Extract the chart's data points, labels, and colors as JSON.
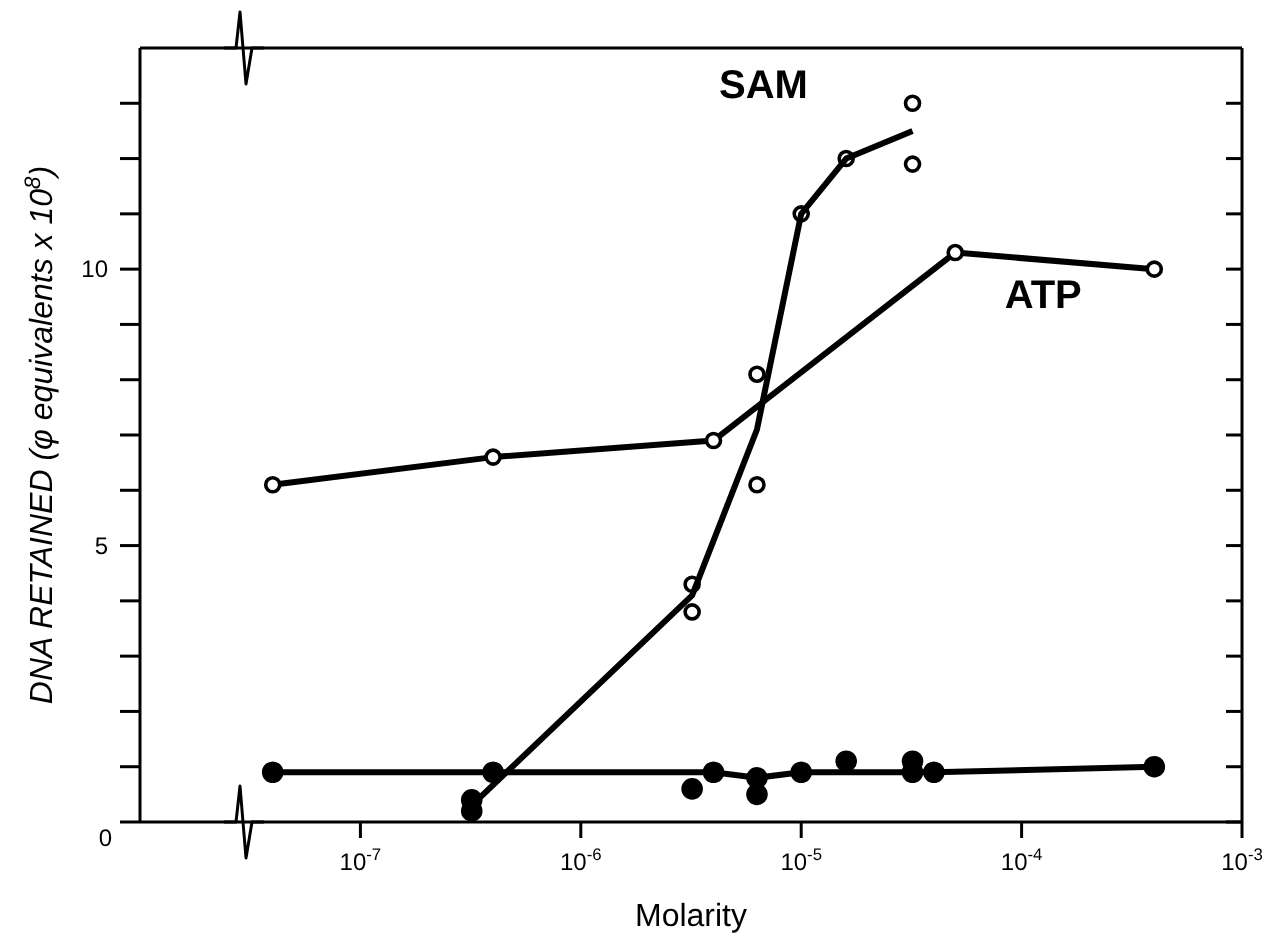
{
  "chart_data": {
    "type": "scatter",
    "xlabel": "Molarity",
    "ylabel": "DNA RETAINED (φ equivalents x 10$^{8}$)",
    "log": "x",
    "xlim": [
      1e-08,
      0.001
    ],
    "ylim": [
      0,
      14
    ],
    "xticks": [
      {
        "value": 1e-07,
        "label": "10$^{-7}$"
      },
      {
        "value": 1e-06,
        "label": "10$^{-6}$"
      },
      {
        "value": 1e-05,
        "label": "10$^{-5}$"
      },
      {
        "value": 0.0001,
        "label": "10$^{-4}$"
      },
      {
        "value": 0.001,
        "label": "10$^{-3}$"
      }
    ],
    "yticks": [
      0,
      {
        "value": 1,
        "label": null
      },
      {
        "value": 2,
        "label": null
      },
      {
        "value": 3,
        "label": null
      },
      {
        "value": 4,
        "label": null
      },
      5,
      {
        "value": 6,
        "label": null
      },
      {
        "value": 7,
        "label": null
      },
      {
        "value": 8,
        "label": null
      },
      {
        "value": 9,
        "label": null
      },
      10,
      {
        "value": 11,
        "label": null
      },
      {
        "value": 12,
        "label": null
      },
      {
        "value": 13,
        "label": null
      }
    ],
    "series": [
      {
        "name": "ATP",
        "type": "line",
        "marker": "circle",
        "color": "#000000",
        "x": [
          4e-08,
          4e-07,
          4e-06,
          5e-05,
          0.0004
        ],
        "values": [
          6.1,
          6.6,
          6.9,
          10.3,
          10.0
        ]
      },
      {
        "name": "SAM",
        "marker": "circle",
        "color": "#000000",
        "x": [
          3.2e-06,
          3.2e-06,
          6.3e-06,
          6.3e-06,
          1e-05,
          1.6e-05,
          3.2e-05,
          3.2e-05
        ],
        "values": [
          4.3,
          3.8,
          6.1,
          8.1,
          11.0,
          12.0,
          11.9,
          13.0
        ]
      },
      {
        "type": "line",
        "marker": "none",
        "color": "#000000",
        "x": [
          3.2e-07,
          3.2e-06,
          6.3e-06,
          1e-05,
          1.6e-05,
          3.2e-05
        ],
        "values": [
          0.3,
          4.1,
          7.1,
          11.0,
          12.0,
          12.5
        ]
      },
      {
        "type": "line",
        "marker": "circle",
        "color": "#000000",
        "x": [
          4e-08,
          4e-07,
          4e-06,
          6.3e-06,
          1e-05,
          3.2e-05,
          4e-05,
          0.0004
        ],
        "values": [
          0.9,
          0.9,
          0.9,
          0.8,
          0.9,
          0.9,
          0.9,
          1.0
        ]
      },
      {
        "marker": "circle",
        "color": "#000000",
        "x": [
          3.2e-07,
          3.2e-07,
          3.2e-06,
          6.3e-06,
          1.6e-05,
          3.2e-05
        ],
        "values": [
          0.4,
          0.2,
          0.6,
          0.5,
          1.1,
          1.1
        ]
      }
    ]
  }
}
